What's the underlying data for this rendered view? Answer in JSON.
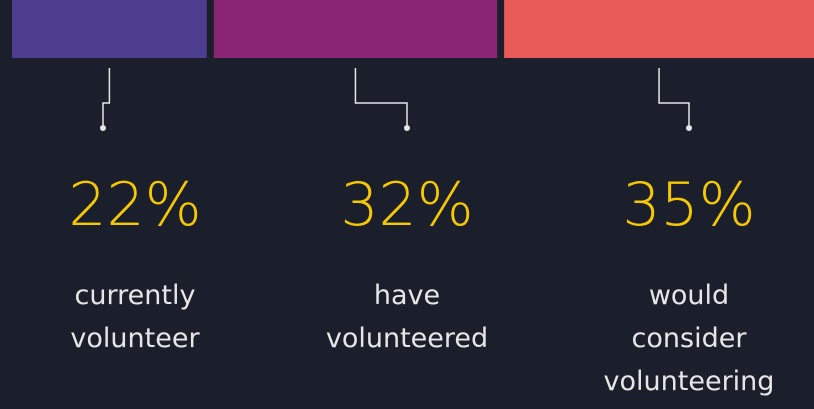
{
  "chart_data": {
    "type": "bar",
    "categories": [
      "currently volunteer",
      "have volunteered",
      "would consider volunteering"
    ],
    "values": [
      22,
      32,
      35
    ],
    "value_labels": [
      "22%",
      "32%",
      "35%"
    ],
    "colors": [
      "#4d3d8f",
      "#8a2573",
      "#e85a55"
    ]
  }
}
